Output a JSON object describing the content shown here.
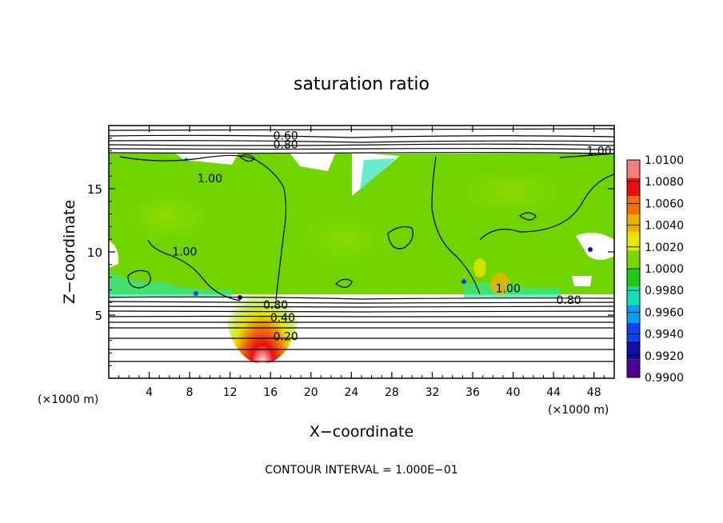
{
  "chart_data": {
    "type": "heatmap",
    "title": "saturation ratio",
    "xlabel": "X−coordinate",
    "ylabel": "Z−coordinate",
    "x_unit_label": "(×1000 m)",
    "z_unit_label": "(×1000 m)",
    "xlim": [
      0,
      50
    ],
    "ylim": [
      0,
      20
    ],
    "x_ticks": [
      4,
      8,
      12,
      16,
      20,
      24,
      28,
      32,
      36,
      40,
      44,
      48
    ],
    "y_ticks": [
      5,
      10,
      15
    ],
    "contour_interval_text": "CONTOUR INTERVAL = 1.000E−01",
    "contour_labels": [
      {
        "text": "0.60",
        "x": 17.5,
        "z": 18.9
      },
      {
        "text": "0.80",
        "x": 17.5,
        "z": 18.2
      },
      {
        "text": "1.00",
        "x": 48.5,
        "z": 17.7
      },
      {
        "text": "1.00",
        "x": 10.0,
        "z": 15.5
      },
      {
        "text": "1.00",
        "x": 7.5,
        "z": 9.7
      },
      {
        "text": "1.00",
        "x": 39.5,
        "z": 6.8
      },
      {
        "text": "0.80",
        "x": 45.5,
        "z": 5.9
      },
      {
        "text": "0.80",
        "x": 16.5,
        "z": 5.5
      },
      {
        "text": "0.40",
        "x": 17.2,
        "z": 4.5
      },
      {
        "text": "0.20",
        "x": 17.5,
        "z": 3.0
      }
    ],
    "colorbar": {
      "labels": [
        "1.0100",
        "1.0080",
        "1.0060",
        "1.0040",
        "1.0020",
        "1.0000",
        "0.9980",
        "0.9960",
        "0.9940",
        "0.9920",
        "0.9900"
      ],
      "colors": [
        "#f08080",
        "#e81010",
        "#f07000",
        "#f0b000",
        "#e6e600",
        "#7ad800",
        "#22c814",
        "#12e0b0",
        "#00a0f0",
        "#1040f0",
        "#1010a0",
        "#500090"
      ]
    }
  }
}
